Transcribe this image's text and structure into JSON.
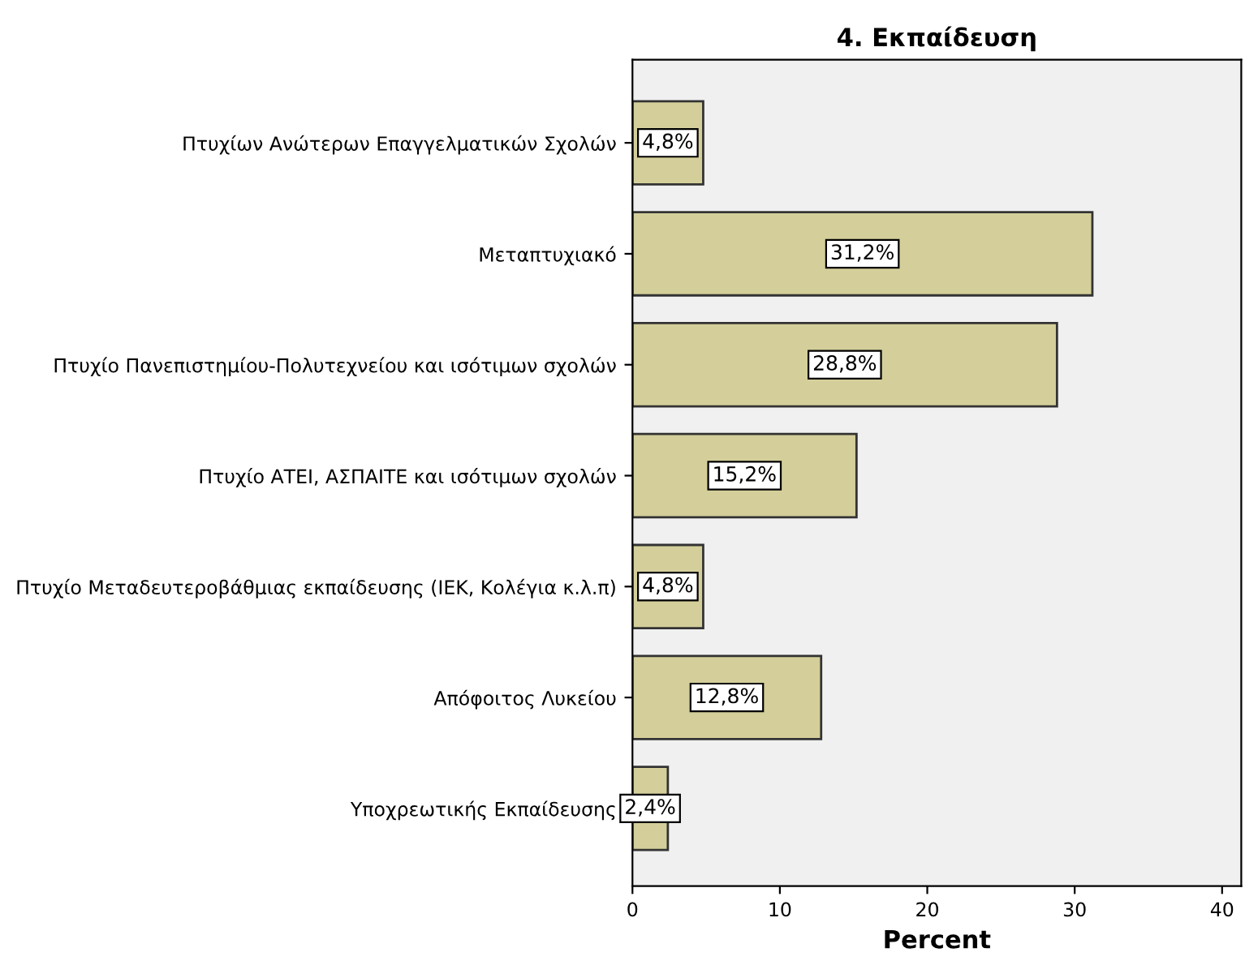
{
  "chart_data": {
    "type": "bar",
    "orientation": "horizontal",
    "title": "4. Εκπαίδευση",
    "xlabel": "Percent",
    "categories": [
      "Πτυχίων Ανώτερων Επαγγελματικών Σχολών",
      "Μεταπτυχιακό",
      "Πτυχίο Πανεπιστημίου-Πολυτεχνείου και ισότιμων σχολών",
      "Πτυχίο ΑΤΕΙ, ΑΣΠΑΙΤΕ και ισότιμων σχολών",
      "Πτυχίο Μεταδευτεροβάθμιας εκπαίδευσης (ΙΕΚ, Κολέγια κ.λ.π)",
      "Απόφοιτος Λυκείου",
      "Υποχρεωτικής Εκπαίδευσης"
    ],
    "values": [
      4.8,
      31.2,
      28.8,
      15.2,
      4.8,
      12.8,
      2.4
    ],
    "value_labels": [
      "4,8%",
      "31,2%",
      "28,8%",
      "15,2%",
      "4,8%",
      "12,8%",
      "2,4%"
    ],
    "color": "#d4cf9a",
    "xlim": [
      0,
      41.3
    ],
    "xticks": [
      0,
      10,
      20,
      30,
      40
    ],
    "grid": false,
    "legend": false
  }
}
